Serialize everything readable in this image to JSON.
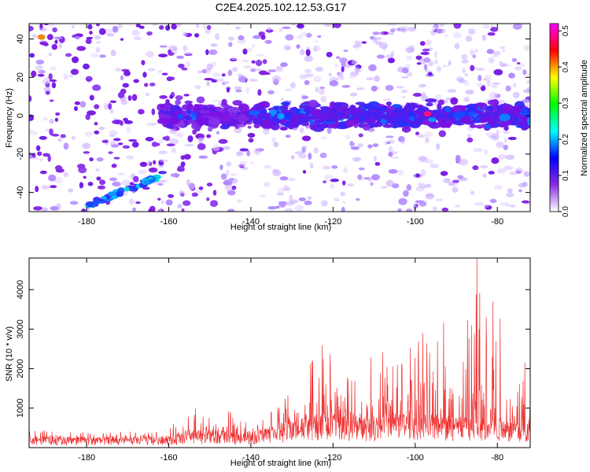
{
  "title": "C2E4.2025.102.12.53.G17",
  "chart_data": [
    {
      "type": "heatmap",
      "title": "C2E4.2025.102.12.53.G17",
      "xlabel": "Height of straight line (km)",
      "ylabel": "Frequency (Hz)",
      "xlim": [
        -194,
        -72
      ],
      "ylim": [
        -50,
        48
      ],
      "xticks": [
        -180,
        -160,
        -140,
        -120,
        -100,
        -80
      ],
      "yticks": [
        -40,
        -20,
        0,
        20,
        40
      ],
      "colorbar": {
        "label": "Normalized spectral amplitude",
        "min": 0,
        "max": 0.52,
        "ticks": [
          0,
          0.1,
          0.2,
          0.3,
          0.4,
          0.5
        ],
        "colors": [
          "#ffffff",
          "#8a2be2",
          "#0000ff",
          "#00ffff",
          "#00ff00",
          "#ffff00",
          "#ff0000",
          "#ff00ff"
        ]
      },
      "features": [
        {
          "label": "main band center",
          "x_range": [
            -160,
            -72
          ],
          "freq_center": 0,
          "freq_halfwidth": 8
        },
        {
          "label": "descending streak",
          "x_start": -180,
          "x_end": -160,
          "freq_start": -47,
          "freq_end": -30
        },
        {
          "label": "upper-left bright spot",
          "x": -191,
          "freq": 41,
          "amplitude": 0.45
        },
        {
          "label": "peak spot",
          "x": -97,
          "freq": 1,
          "amplitude": 0.5
        }
      ],
      "grid": false,
      "legend": "colorbar right"
    },
    {
      "type": "line",
      "xlabel": "Height of straight line (km)",
      "ylabel": "SNR (10 * v/v)",
      "xlim": [
        -194,
        -72
      ],
      "ylim": [
        0,
        4800
      ],
      "xticks": [
        -180,
        -160,
        -140,
        -120,
        -100,
        -80
      ],
      "yticks": [
        1000,
        2000,
        3000,
        4000
      ],
      "color": "#ee3333",
      "envelope": [
        {
          "x": -194,
          "base": 200,
          "peak": 450
        },
        {
          "x": -170,
          "base": 180,
          "peak": 400
        },
        {
          "x": -160,
          "base": 200,
          "peak": 500
        },
        {
          "x": -152,
          "base": 300,
          "peak": 1250
        },
        {
          "x": -140,
          "base": 250,
          "peak": 650
        },
        {
          "x": -134,
          "base": 400,
          "peak": 950
        },
        {
          "x": -128,
          "base": 500,
          "peak": 1700
        },
        {
          "x": -122,
          "base": 600,
          "peak": 2700
        },
        {
          "x": -115,
          "base": 500,
          "peak": 2100
        },
        {
          "x": -106,
          "base": 600,
          "peak": 2500
        },
        {
          "x": -100,
          "base": 600,
          "peak": 2900
        },
        {
          "x": -95,
          "base": 600,
          "peak": 4000
        },
        {
          "x": -88,
          "base": 500,
          "peak": 2700
        },
        {
          "x": -85,
          "base": 500,
          "peak": 4800
        },
        {
          "x": -80,
          "base": 500,
          "peak": 3400
        },
        {
          "x": -72,
          "base": 400,
          "peak": 1900
        }
      ],
      "grid": false
    }
  ]
}
